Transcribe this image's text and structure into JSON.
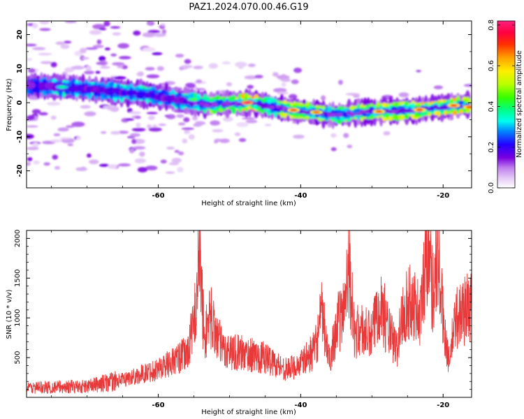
{
  "chart_data": [
    {
      "type": "heatmap",
      "title": "PAZ1.2024.070.00.46.G19",
      "xlabel": "Height of straight line (km)",
      "ylabel": "Frequency (Hz)",
      "xlim": [
        -78.5,
        -16
      ],
      "ylim": [
        -25,
        24
      ],
      "x_ticks": [
        -60,
        -40,
        -20
      ],
      "y_ticks": [
        -20,
        -10,
        0,
        10,
        20
      ],
      "colorbar": {
        "label": "Normalized spectral amplitude",
        "range": [
          0.0,
          0.82
        ],
        "ticks": [
          0.0,
          0.2,
          0.4,
          0.6,
          0.8
        ],
        "colormap": "gist_ncar_r"
      },
      "ridge": {
        "x": [
          -77,
          -74,
          -70,
          -66,
          -62,
          -59,
          -56,
          -53,
          -50,
          -47,
          -44,
          -41,
          -38,
          -35,
          -32,
          -29,
          -26,
          -23,
          -20,
          -17
        ],
        "freq": [
          5,
          4.5,
          4,
          3.2,
          2.5,
          1.5,
          0.5,
          -0.5,
          -0.2,
          0,
          -1.2,
          -2.2,
          -2.8,
          -3.5,
          -3,
          -2.5,
          -2.3,
          -2.0,
          -1.2,
          -0.8
        ],
        "amplitude": [
          0.3,
          0.4,
          0.38,
          0.42,
          0.45,
          0.38,
          0.42,
          0.55,
          0.6,
          0.78,
          0.5,
          0.72,
          0.65,
          0.5,
          0.6,
          0.7,
          0.62,
          0.72,
          0.72,
          0.72
        ]
      }
    },
    {
      "type": "line",
      "title": "",
      "xlabel": "Height of straight line (km)",
      "ylabel": "SNR (10 * v/v)",
      "xlim": [
        -78.5,
        -16
      ],
      "ylim": [
        0,
        2100
      ],
      "x_ticks": [
        -60,
        -40,
        -20
      ],
      "y_ticks": [
        500,
        1000,
        1500,
        2000
      ],
      "line_color": "#e83a3a",
      "envelope": {
        "x": [
          -78.5,
          -70,
          -65,
          -62,
          -60,
          -58,
          -56,
          -55,
          -54.2,
          -53.5,
          -52.8,
          -51,
          -48,
          -45,
          -42,
          -40,
          -38,
          -37,
          -36,
          -35,
          -34,
          -33.3,
          -32.5,
          -31.5,
          -30,
          -29,
          -27.5,
          -26.5,
          -25.5,
          -24,
          -23.2,
          -22.5,
          -22,
          -21.5,
          -20.8,
          -20,
          -19.2,
          -18.2,
          -17,
          -16
        ],
        "values": [
          120,
          140,
          220,
          300,
          360,
          450,
          550,
          900,
          1800,
          700,
          1050,
          600,
          550,
          500,
          350,
          420,
          600,
          1050,
          450,
          900,
          1050,
          1820,
          800,
          850,
          750,
          1250,
          800,
          600,
          1150,
          1200,
          1000,
          1700,
          2100,
          1300,
          1800,
          1000,
          450,
          1000,
          1100,
          1150
        ]
      }
    }
  ]
}
